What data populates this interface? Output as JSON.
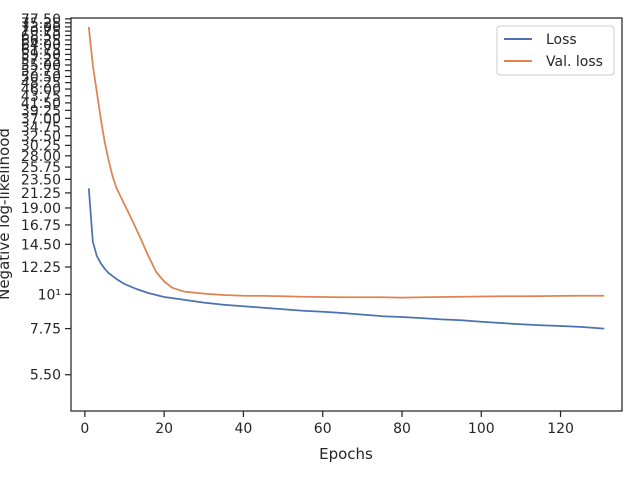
{
  "chart_data": {
    "type": "line",
    "title": "",
    "xlabel": "Epochs",
    "ylabel": "Negative log-likelihood",
    "y_scale": "log",
    "xlim": [
      -3.5,
      135.5
    ],
    "ylim": [
      4.2,
      78
    ],
    "grid": false,
    "legend_position": "top-right",
    "x_ticks": [
      0,
      20,
      40,
      60,
      80,
      100,
      120
    ],
    "y_ticks": [
      {
        "value": 5.5,
        "label": "5.50"
      },
      {
        "value": 7.75,
        "label": "7.75"
      },
      {
        "value": 10,
        "label": "10¹"
      },
      {
        "value": 12.25,
        "label": "12.25"
      },
      {
        "value": 14.5,
        "label": "14.50"
      },
      {
        "value": 16.75,
        "label": "16.75"
      },
      {
        "value": 19.0,
        "label": "19.00"
      },
      {
        "value": 21.25,
        "label": "21.25"
      },
      {
        "value": 23.5,
        "label": "23.50"
      },
      {
        "value": 25.75,
        "label": "25.75"
      },
      {
        "value": 28.0,
        "label": "28.00"
      },
      {
        "value": 30.25,
        "label": "30.25"
      },
      {
        "value": 32.5,
        "label": "32.50"
      },
      {
        "value": 34.75,
        "label": "34.75"
      },
      {
        "value": 37.0,
        "label": "37.00"
      },
      {
        "value": 39.25,
        "label": "39.25"
      },
      {
        "value": 41.5,
        "label": "41.50"
      },
      {
        "value": 43.75,
        "label": "43.75"
      },
      {
        "value": 46.0,
        "label": "46.00"
      },
      {
        "value": 48.25,
        "label": "48.25"
      },
      {
        "value": 50.5,
        "label": "50.50"
      },
      {
        "value": 52.75,
        "label": "52.75"
      },
      {
        "value": 55.0,
        "label": "55.00"
      },
      {
        "value": 57.25,
        "label": "57.25"
      },
      {
        "value": 59.5,
        "label": "59.50"
      },
      {
        "value": 61.75,
        "label": "61.75"
      },
      {
        "value": 64.0,
        "label": "64.00"
      },
      {
        "value": 66.25,
        "label": "66.25"
      },
      {
        "value": 68.5,
        "label": "68.50"
      },
      {
        "value": 70.75,
        "label": "70.75"
      },
      {
        "value": 73.0,
        "label": "73.00"
      },
      {
        "value": 75.25,
        "label": "75.25"
      },
      {
        "value": 77.5,
        "label": "77.50"
      }
    ],
    "series": [
      {
        "name": "Loss",
        "color": "#4c72b0",
        "points": [
          [
            1,
            22.0
          ],
          [
            2,
            14.8
          ],
          [
            3,
            13.3
          ],
          [
            4,
            12.6
          ],
          [
            5,
            12.1
          ],
          [
            6,
            11.7
          ],
          [
            8,
            11.2
          ],
          [
            10,
            10.8
          ],
          [
            13,
            10.4
          ],
          [
            16,
            10.1
          ],
          [
            20,
            9.8
          ],
          [
            25,
            9.6
          ],
          [
            30,
            9.4
          ],
          [
            35,
            9.25
          ],
          [
            40,
            9.15
          ],
          [
            45,
            9.05
          ],
          [
            50,
            8.95
          ],
          [
            55,
            8.85
          ],
          [
            60,
            8.78
          ],
          [
            65,
            8.7
          ],
          [
            70,
            8.6
          ],
          [
            75,
            8.5
          ],
          [
            80,
            8.45
          ],
          [
            85,
            8.38
          ],
          [
            90,
            8.3
          ],
          [
            95,
            8.25
          ],
          [
            100,
            8.15
          ],
          [
            105,
            8.08
          ],
          [
            110,
            8.0
          ],
          [
            115,
            7.95
          ],
          [
            120,
            7.9
          ],
          [
            125,
            7.85
          ],
          [
            131,
            7.75
          ]
        ]
      },
      {
        "name": "Val. loss",
        "color": "#dd8452",
        "points": [
          [
            1,
            73.0
          ],
          [
            2,
            55.0
          ],
          [
            3,
            45.0
          ],
          [
            4,
            37.0
          ],
          [
            5,
            31.0
          ],
          [
            6,
            27.0
          ],
          [
            7,
            24.0
          ],
          [
            8,
            22.0
          ],
          [
            10,
            19.5
          ],
          [
            12,
            17.3
          ],
          [
            14,
            15.2
          ],
          [
            16,
            13.3
          ],
          [
            18,
            11.8
          ],
          [
            20,
            11.0
          ],
          [
            22,
            10.5
          ],
          [
            25,
            10.2
          ],
          [
            30,
            10.05
          ],
          [
            35,
            9.95
          ],
          [
            40,
            9.9
          ],
          [
            45,
            9.88
          ],
          [
            50,
            9.85
          ],
          [
            55,
            9.82
          ],
          [
            60,
            9.8
          ],
          [
            65,
            9.78
          ],
          [
            70,
            9.78
          ],
          [
            75,
            9.78
          ],
          [
            80,
            9.76
          ],
          [
            85,
            9.78
          ],
          [
            90,
            9.8
          ],
          [
            95,
            9.82
          ],
          [
            100,
            9.84
          ],
          [
            105,
            9.85
          ],
          [
            110,
            9.86
          ],
          [
            115,
            9.87
          ],
          [
            120,
            9.88
          ],
          [
            125,
            9.9
          ],
          [
            131,
            9.9
          ]
        ]
      }
    ]
  }
}
